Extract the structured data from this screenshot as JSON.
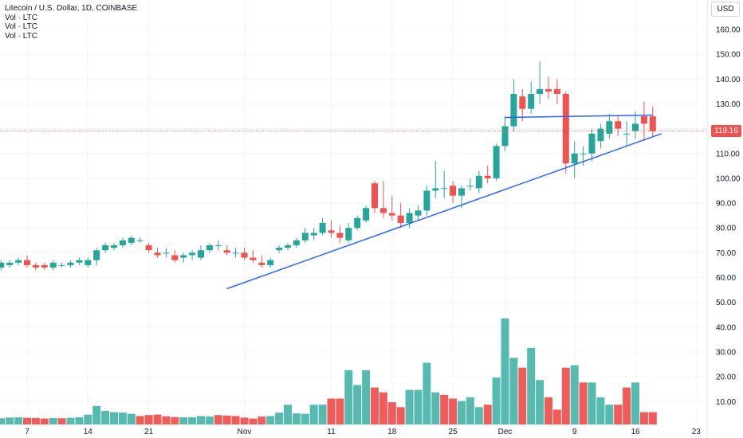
{
  "header": {
    "symbol_title": "Litecoin / U.S. Dollar, 1D, COINBASE",
    "indicators": [
      "Vol · LTC",
      "Vol · LTC",
      "Vol · LTC"
    ],
    "currency": "USD",
    "last_price": "119.16"
  },
  "colors": {
    "up": "#26a69a",
    "down": "#ef5350",
    "up_volume": "#4db6ac",
    "down_volume": "#ef5350",
    "trendline": "#2962ff",
    "price_line": "#ef5350",
    "grid": "#f0f3fa"
  },
  "chart_data": {
    "type": "candlestick",
    "title": "Litecoin / U.S. Dollar, 1D, COINBASE",
    "xlabel": "",
    "ylabel": "",
    "ylim": [
      0,
      165
    ],
    "grid": true,
    "price_axis_ticks": [
      "160.00",
      "150.00",
      "140.00",
      "130.00",
      "120.00",
      "110.00",
      "100.00",
      "90.00",
      "80.00",
      "70.00",
      "60.00",
      "50.00",
      "40.00",
      "30.00",
      "20.00",
      "10.00"
    ],
    "price_axis_values": [
      160,
      150,
      140,
      130,
      120,
      110,
      100,
      90,
      80,
      70,
      60,
      50,
      40,
      30,
      20,
      10
    ],
    "x_tick_labels": [
      "7",
      "14",
      "21",
      "Nov",
      "11",
      "18",
      "25",
      "Dec",
      "9",
      "16",
      "23"
    ],
    "x_tick_days": [
      7,
      14,
      21,
      32,
      42,
      49,
      56,
      62,
      70,
      77,
      84
    ],
    "last_price": 119.16,
    "candles": {
      "day": [
        4,
        5,
        6,
        7,
        8,
        9,
        10,
        11,
        12,
        13,
        14,
        15,
        16,
        17,
        18,
        19,
        20,
        21,
        22,
        23,
        24,
        25,
        26,
        27,
        28,
        29,
        30,
        31,
        32,
        33,
        34,
        35,
        36,
        37,
        38,
        39,
        40,
        41,
        42,
        43,
        44,
        45,
        46,
        47,
        48,
        49,
        50,
        51,
        52,
        53,
        54,
        55,
        56,
        57,
        58,
        59,
        60,
        61,
        62,
        63,
        64,
        65,
        66,
        67,
        68,
        69,
        70,
        71,
        72,
        73,
        74,
        75,
        76,
        77,
        78,
        79
      ],
      "open": [
        64,
        65,
        66,
        67,
        65,
        65,
        64,
        65,
        65,
        66,
        65,
        67,
        71,
        72,
        73,
        74,
        75,
        73,
        70,
        70,
        69,
        68,
        69,
        68,
        71,
        73,
        71,
        70,
        70,
        68,
        66,
        65,
        71,
        72,
        73,
        75,
        77,
        78,
        79,
        78,
        75,
        80,
        83,
        98,
        88,
        86,
        85,
        82,
        85,
        87,
        95,
        96,
        97,
        93,
        97,
        96,
        101,
        100,
        113,
        121,
        133,
        128,
        134,
        136,
        136,
        134,
        106,
        110,
        110,
        115,
        118,
        123,
        118,
        119,
        125,
        125
      ],
      "close": [
        66,
        66,
        67,
        65,
        64,
        64,
        66,
        65,
        66,
        67,
        67,
        71,
        73,
        73,
        75,
        76,
        75,
        71,
        69,
        70,
        67,
        69,
        70,
        71,
        73,
        73,
        70,
        70,
        68,
        67,
        65,
        67,
        72,
        73,
        75,
        78,
        78,
        82,
        78,
        76,
        80,
        84,
        88,
        88,
        86,
        85,
        82,
        86,
        87,
        95,
        96,
        96,
        93,
        96,
        97,
        101,
        100,
        113,
        121,
        134,
        128,
        134,
        136,
        135,
        134,
        106,
        110,
        110,
        118,
        120,
        123,
        120,
        118,
        122,
        122,
        119
      ],
      "high": [
        67,
        67,
        68,
        69,
        66,
        66,
        67,
        66,
        67,
        68,
        68,
        72,
        74,
        74,
        76,
        77,
        76,
        74,
        72,
        72,
        71,
        70,
        71,
        73,
        74,
        75,
        73,
        72,
        72,
        71,
        69,
        68,
        73,
        74,
        76,
        80,
        80,
        84,
        83,
        81,
        82,
        85,
        89,
        99,
        99,
        93,
        90,
        88,
        89,
        97,
        107,
        103,
        99,
        97,
        100,
        103,
        105,
        114,
        125,
        140,
        136,
        139,
        147,
        141,
        140,
        135,
        115,
        113,
        120,
        122,
        126,
        125,
        123,
        127,
        131,
        129
      ],
      "low": [
        63,
        64,
        65,
        64,
        63,
        63,
        63,
        64,
        64,
        65,
        64,
        65,
        70,
        71,
        72,
        73,
        74,
        70,
        68,
        68,
        66,
        66,
        67,
        67,
        70,
        71,
        69,
        68,
        67,
        66,
        64,
        64,
        70,
        71,
        72,
        74,
        75,
        77,
        76,
        74,
        74,
        79,
        82,
        86,
        84,
        83,
        80,
        80,
        83,
        85,
        92,
        92,
        90,
        88,
        95,
        94,
        98,
        99,
        111,
        119,
        123,
        126,
        130,
        132,
        130,
        102,
        100,
        105,
        107,
        112,
        116,
        117,
        113,
        116,
        115,
        117
      ]
    },
    "volume": {
      "day": [
        4,
        5,
        6,
        7,
        8,
        9,
        10,
        11,
        12,
        13,
        14,
        15,
        16,
        17,
        18,
        19,
        20,
        21,
        22,
        23,
        24,
        25,
        26,
        27,
        28,
        29,
        30,
        31,
        32,
        33,
        34,
        35,
        36,
        37,
        38,
        39,
        40,
        41,
        42,
        43,
        44,
        45,
        46,
        47,
        48,
        49,
        50,
        51,
        52,
        53,
        54,
        55,
        56,
        57,
        58,
        59,
        60,
        61,
        62,
        63,
        64,
        65,
        66,
        67,
        68,
        69,
        70,
        71,
        72,
        73,
        74,
        75,
        76,
        77,
        78,
        79
      ],
      "value": [
        2.5,
        2.8,
        2.9,
        2.7,
        2.6,
        2.4,
        2.6,
        2.5,
        2.7,
        2.9,
        4,
        7.5,
        5.5,
        5,
        4.8,
        4.3,
        3.4,
        3.8,
        4,
        3.3,
        3,
        2.9,
        2.9,
        3.4,
        3.2,
        3.8,
        3.6,
        3.4,
        2.8,
        2.4,
        3.2,
        3.4,
        4.8,
        8,
        4.5,
        4.3,
        8,
        8,
        10.5,
        10.5,
        22,
        16,
        22,
        15,
        13,
        9,
        7,
        14,
        14,
        25,
        13,
        12,
        10.5,
        9.5,
        11,
        7,
        8,
        19,
        43,
        27,
        23,
        31,
        18,
        11,
        6,
        23,
        24,
        17,
        17,
        11,
        8,
        8,
        15,
        17,
        5,
        5
      ],
      "up": [
        1,
        1,
        1,
        0,
        0,
        0,
        1,
        0,
        1,
        1,
        1,
        1,
        1,
        1,
        1,
        1,
        0,
        0,
        0,
        0,
        0,
        1,
        1,
        1,
        1,
        0,
        0,
        0,
        0,
        0,
        0,
        1,
        1,
        1,
        1,
        1,
        1,
        1,
        0,
        0,
        1,
        1,
        1,
        0,
        0,
        0,
        0,
        1,
        1,
        1,
        1,
        0,
        0,
        1,
        1,
        1,
        0,
        1,
        1,
        1,
        0,
        1,
        1,
        0,
        0,
        0,
        1,
        0,
        1,
        1,
        1,
        0,
        0,
        1,
        0,
        0
      ]
    },
    "trendlines": [
      {
        "name": "ascending-support",
        "from": {
          "day": 30,
          "price": 55.5
        },
        "to": {
          "day": 80,
          "price": 118
        }
      },
      {
        "name": "resistance-top",
        "from": {
          "day": 62,
          "price": 124.5
        },
        "to": {
          "day": 79,
          "price": 125.5
        }
      }
    ]
  }
}
